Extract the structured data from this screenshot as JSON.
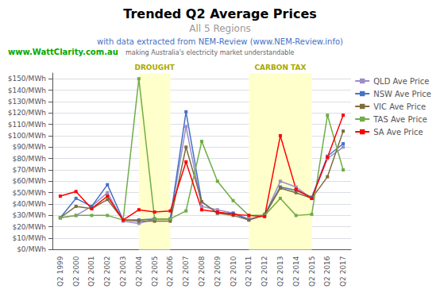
{
  "chart_data": {
    "type": "line",
    "title": "Trended Q2 Average Prices",
    "subtitle": [
      "All 5 Regions",
      "with data extracted from NEM-Review (www.NEM-Review.info)"
    ],
    "annotations": [
      {
        "text": "www.WattClarity.com.au"
      },
      {
        "text": "making Australia's electricity market understandable"
      }
    ],
    "categories": [
      "Q2 1999",
      "Q2 2000",
      "Q2 2001",
      "Q2 2002",
      "Q2 2003",
      "Q2 2004",
      "Q2 2005",
      "Q2 2006",
      "Q2 2007",
      "Q2 2008",
      "Q2 2009",
      "Q2 2010",
      "Q2 2011",
      "Q2 2012",
      "Q2 2013",
      "Q2 2014",
      "Q2 2015",
      "Q2 2016",
      "Q2 2017"
    ],
    "series": [
      {
        "name": "QLD Ave Price",
        "color": "#9B8DC8",
        "values": [
          28,
          30,
          38,
          50,
          25,
          23,
          27,
          27,
          108,
          38,
          35,
          32,
          27,
          30,
          60,
          55,
          45,
          80,
          90
        ]
      },
      {
        "name": "NSW Ave Price",
        "color": "#4472C4",
        "values": [
          28,
          45,
          38,
          57,
          26,
          26,
          27,
          27,
          121,
          42,
          32,
          32,
          26,
          31,
          55,
          52,
          46,
          82,
          93
        ]
      },
      {
        "name": "VIC Ave Price",
        "color": "#7F6C3B",
        "values": [
          28,
          38,
          36,
          44,
          26,
          25,
          25,
          25,
          90,
          42,
          32,
          30,
          26,
          30,
          54,
          50,
          45,
          64,
          104
        ]
      },
      {
        "name": "TAS Ave Price",
        "color": "#70AD47",
        "values": [
          28,
          30,
          30,
          30,
          26,
          150,
          27,
          27,
          34,
          95,
          60,
          43,
          30,
          30,
          45,
          30,
          31,
          118,
          70
        ]
      },
      {
        "name": "SA Ave Price",
        "color": "#FF0000",
        "values": [
          47,
          51,
          36,
          47,
          26,
          35,
          33,
          34,
          77,
          35,
          33,
          31,
          30,
          29,
          100,
          53,
          45,
          81,
          118
        ]
      }
    ],
    "regions": [
      {
        "label": "DROUGHT",
        "start": "Q2 2004",
        "end": "Q2 2006",
        "color": "#FFFFCC"
      },
      {
        "label": "CARBON TAX",
        "start": "Q2 2011",
        "end": "Q2 2015",
        "color": "#FFFFCC"
      }
    ],
    "ylim": [
      0,
      155
    ],
    "yticks": [
      {
        "value": 0,
        "label": "$0/MWh"
      },
      {
        "value": 10,
        "label": "$10/MWh"
      },
      {
        "value": 20,
        "label": "$20/MWh"
      },
      {
        "value": 30,
        "label": "$30/MWh"
      },
      {
        "value": 40,
        "label": "$40/MWh"
      },
      {
        "value": 50,
        "label": "$50/MWh"
      },
      {
        "value": 60,
        "label": "$60/MWh"
      },
      {
        "value": 70,
        "label": "$70/MWh"
      },
      {
        "value": 80,
        "label": "$80/MWh"
      },
      {
        "value": 90,
        "label": "$90/MWh"
      },
      {
        "value": 100,
        "label": "$100/MWh"
      },
      {
        "value": 110,
        "label": "$110/MWh"
      },
      {
        "value": 120,
        "label": "$120/MWh"
      },
      {
        "value": 130,
        "label": "$130/MWh"
      },
      {
        "value": 140,
        "label": "$140/MWh"
      },
      {
        "value": 150,
        "label": "$150/MWh"
      }
    ],
    "grid": true,
    "legend": "upper right",
    "marker": "square"
  }
}
